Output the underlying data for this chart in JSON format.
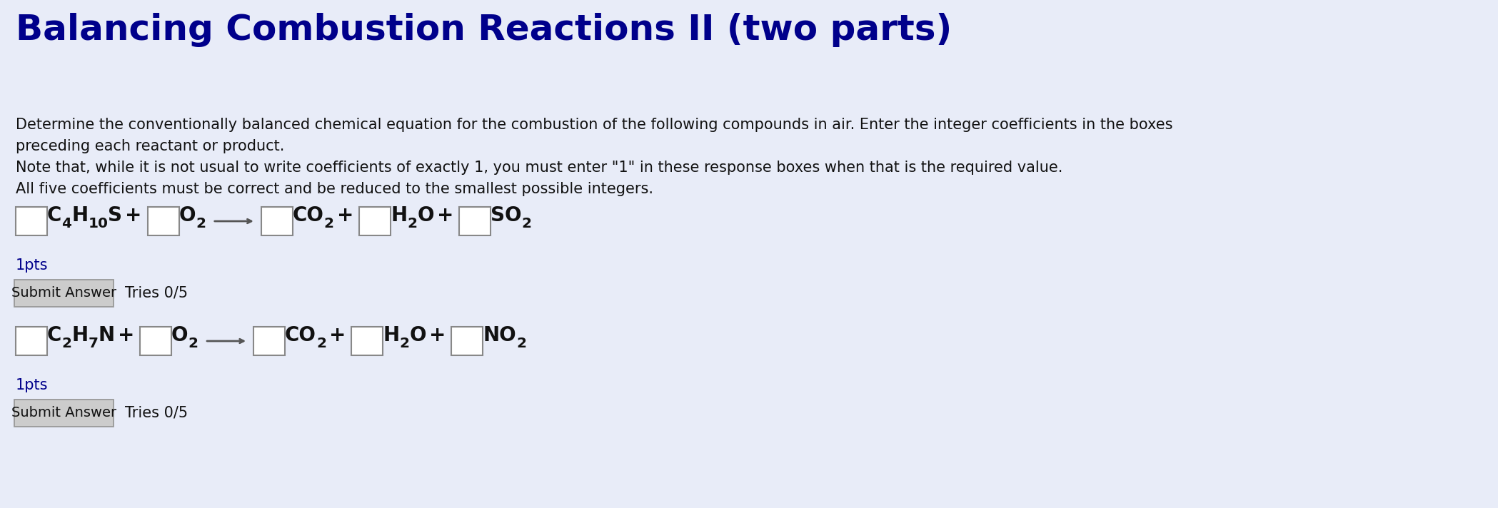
{
  "title": "Balancing Combustion Reactions II (two parts)",
  "background_color": "#e8ecf8",
  "title_color": "#00008B",
  "title_fontsize": 36,
  "description_lines": [
    "Determine the conventionally balanced chemical equation for the combustion of the following compounds in air. Enter the integer coefficients in the boxes",
    "preceding each reactant or product.",
    "Note that, while it is not usual to write coefficients of exactly 1, you must enter \"1\" in these response boxes when that is the required value.",
    "All five coefficients must be correct and be reduced to the smallest possible integers."
  ],
  "desc_fontsize": 15,
  "desc_color": "#111111",
  "pts_color": "#00008B",
  "pts_fontsize": 15,
  "submit_label": "Submit Answer",
  "tries_label": "Tries 0/5",
  "tries_fontsize": 15,
  "box_color": "#ffffff",
  "box_edge_color": "#888888",
  "eq_text_color": "#111111",
  "eq_fontsize": 20,
  "submit_box_color": "#cccccc",
  "submit_text_color": "#111111",
  "submit_fontsize": 14,
  "fig_width": 20.98,
  "fig_height": 7.12
}
